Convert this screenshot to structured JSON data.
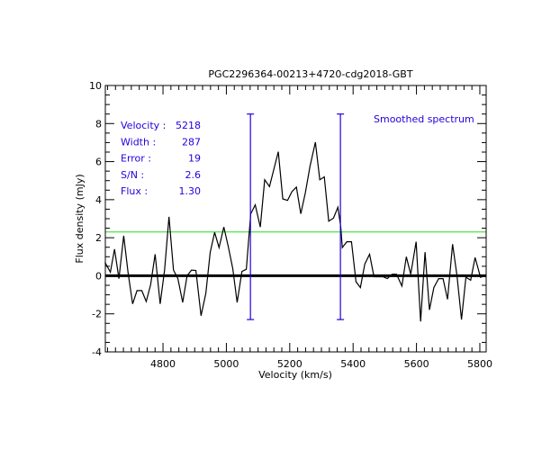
{
  "chart_data": {
    "type": "line",
    "title": "PGC2296364-00213+4720-cdg2018-GBT",
    "xlabel": "Velocity (km/s)",
    "ylabel": "Flux density (mJy)",
    "xlim": [
      4618,
      5820
    ],
    "ylim": [
      -4,
      10
    ],
    "xticks": [
      4800,
      5000,
      5200,
      5400,
      5600,
      5800
    ],
    "yticks": [
      -4,
      -2,
      0,
      2,
      4,
      6,
      8,
      10
    ],
    "grid": false,
    "series": [
      {
        "color": "#000000",
        "x": [
          4617,
          4634,
          4647,
          4661,
          4676,
          4690,
          4704,
          4718,
          4733,
          4747,
          4761,
          4775,
          4791,
          4805,
          4819,
          4833,
          4847,
          4862,
          4876,
          4890,
          4904,
          4920,
          4935,
          4949,
          4963,
          4977,
          4992,
          5006,
          5020,
          5034,
          5049,
          5063,
          5077,
          5091,
          5107,
          5121,
          5136,
          5150,
          5164,
          5178,
          5193,
          5207,
          5221,
          5235,
          5249,
          5264,
          5281,
          5295,
          5309,
          5323,
          5338,
          5352,
          5361,
          5366,
          5380,
          5395,
          5409,
          5423,
          5437,
          5452,
          5466,
          5480,
          5494,
          5508,
          5523,
          5537,
          5554,
          5568,
          5582,
          5599,
          5613,
          5627,
          5641,
          5655,
          5670,
          5684,
          5698,
          5714,
          5728,
          5742,
          5756,
          5771,
          5785,
          5802,
          5816
        ],
        "y": [
          0.7,
          0.19,
          1.4,
          -0.15,
          2.1,
          0.15,
          -1.48,
          -0.78,
          -0.78,
          -1.35,
          -0.47,
          1.13,
          -1.48,
          0.3,
          3.1,
          0.3,
          -0.15,
          -1.4,
          0,
          0.3,
          0.28,
          -2.1,
          -0.93,
          1.24,
          2.28,
          1.48,
          2.56,
          1.55,
          0.39,
          -1.4,
          0.23,
          0.34,
          3.26,
          3.73,
          2.56,
          5.05,
          4.69,
          5.6,
          6.52,
          4.04,
          3.96,
          4.43,
          4.66,
          3.26,
          4.35,
          5.75,
          7.02,
          5.05,
          5.2,
          2.87,
          3.03,
          3.6,
          2.56,
          1.48,
          1.79,
          1.79,
          -0.31,
          -0.62,
          0.62,
          1.13,
          -0.05,
          -0.05,
          -0.05,
          -0.15,
          0.08,
          0.08,
          -0.54,
          1.0,
          0.08,
          1.79,
          -2.4,
          1.24,
          -1.79,
          -0.62,
          -0.15,
          -0.15,
          -1.24,
          1.66,
          0,
          -2.3,
          -0.08,
          -0.23,
          0.96,
          -0.08,
          0
        ]
      }
    ],
    "zero_line": 0,
    "threshold_line": {
      "y": 2.3,
      "color": "#22dd22"
    },
    "range_markers": {
      "x": [
        5076,
        5360
      ],
      "y_top": 8.5,
      "y_bottom": -2.3,
      "color": "#2200dd"
    },
    "annotation": "Smoothed spectrum",
    "stats": [
      {
        "label": "Velocity :",
        "value": "5218"
      },
      {
        "label": "Width :",
        "value": "287"
      },
      {
        "label": "Error :",
        "value": "19"
      },
      {
        "label": "S/N :",
        "value": "2.6"
      },
      {
        "label": "Flux :",
        "value": "1.30"
      }
    ]
  }
}
